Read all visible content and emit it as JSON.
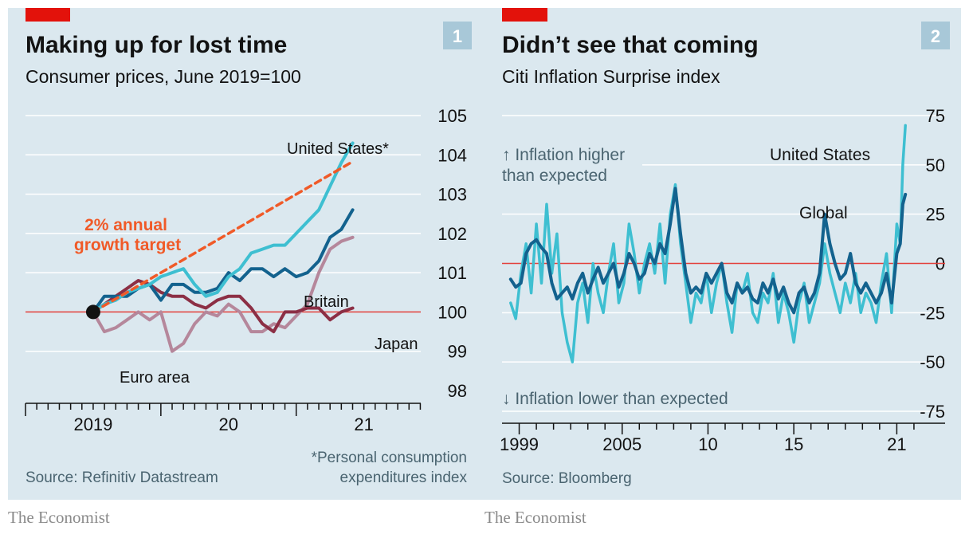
{
  "brand": "The Economist",
  "colors": {
    "panel_bg": "#dbe8ef",
    "grid": "#ffffff",
    "zero_line": "#e3413c",
    "accent_tag": "#e3120b",
    "badge": "#a8c8d8",
    "text_dark": "#121212",
    "text_muted": "#4a6470",
    "usa_light": "#3ebfd1",
    "britain_blue": "#13628e",
    "japan_maroon": "#8c2f45",
    "euro_mauve": "#b5879b",
    "target_orange": "#f05a28"
  },
  "charts": [
    {
      "number": "1",
      "title": "Making up for lost time",
      "subtitle": "Consumer prices, June 2019=100",
      "source": "Source: Refinitiv Datastream",
      "footnote_line1": "*Personal consumption",
      "footnote_line2": "expenditures index"
    },
    {
      "number": "2",
      "title": "Didn’t see that coming",
      "subtitle": "Citi Inflation Surprise index",
      "source": "Source: Bloomberg",
      "note_higher_line1": "↑ Inflation higher",
      "note_higher_line2": "than expected",
      "note_lower": "↓ Inflation lower than expected"
    }
  ],
  "chart_data": [
    {
      "type": "line",
      "title": "Making up for lost time",
      "subtitle": "Consumer prices, June 2019=100",
      "ylim": [
        98,
        105
      ],
      "y_ticks": [
        98,
        99,
        100,
        101,
        102,
        103,
        104,
        105
      ],
      "x_tick_labels": [
        {
          "label": "2019",
          "x": 2019.5
        },
        {
          "label": "20",
          "x": 2020.5
        },
        {
          "label": "21",
          "x": 2021.5
        }
      ],
      "x_range": [
        2019.0,
        2021.92
      ],
      "series": [
        {
          "name": "United States*",
          "label": "United States*",
          "color": "#3ebfd1",
          "x": [
            2019.5,
            2019.583,
            2019.667,
            2019.75,
            2019.833,
            2019.917,
            2020.0,
            2020.083,
            2020.167,
            2020.25,
            2020.333,
            2020.417,
            2020.5,
            2020.583,
            2020.667,
            2020.75,
            2020.833,
            2020.917,
            2021.0,
            2021.083,
            2021.167,
            2021.25,
            2021.333,
            2021.417
          ],
          "values": [
            100,
            100.2,
            100.3,
            100.5,
            100.6,
            100.7,
            100.9,
            101.0,
            101.1,
            100.7,
            100.4,
            100.5,
            100.9,
            101.1,
            101.5,
            101.6,
            101.7,
            101.7,
            102.0,
            102.3,
            102.6,
            103.2,
            103.8,
            104.3
          ]
        },
        {
          "name": "Britain",
          "label": "Britain",
          "color": "#13628e",
          "x": [
            2019.5,
            2019.583,
            2019.667,
            2019.75,
            2019.833,
            2019.917,
            2020.0,
            2020.083,
            2020.167,
            2020.25,
            2020.333,
            2020.417,
            2020.5,
            2020.583,
            2020.667,
            2020.75,
            2020.833,
            2020.917,
            2021.0,
            2021.083,
            2021.167,
            2021.25,
            2021.333,
            2021.417
          ],
          "values": [
            100,
            100.4,
            100.4,
            100.4,
            100.6,
            100.7,
            100.3,
            100.7,
            100.7,
            100.5,
            100.5,
            100.6,
            101.0,
            100.8,
            101.1,
            101.1,
            100.9,
            101.1,
            100.9,
            101.0,
            101.3,
            101.9,
            102.1,
            102.6
          ]
        },
        {
          "name": "Japan",
          "label": "Japan",
          "color": "#8c2f45",
          "x": [
            2019.5,
            2019.583,
            2019.667,
            2019.75,
            2019.833,
            2019.917,
            2020.0,
            2020.083,
            2020.167,
            2020.25,
            2020.333,
            2020.417,
            2020.5,
            2020.583,
            2020.667,
            2020.75,
            2020.833,
            2020.917,
            2021.0,
            2021.083,
            2021.167,
            2021.25,
            2021.333,
            2021.417
          ],
          "values": [
            100,
            100.2,
            100.4,
            100.6,
            100.8,
            100.7,
            100.5,
            100.4,
            100.4,
            100.2,
            100.1,
            100.3,
            100.4,
            100.4,
            100.1,
            99.7,
            99.5,
            100.0,
            100.0,
            100.1,
            100.1,
            99.8,
            100.0,
            100.1
          ]
        },
        {
          "name": "Euro area",
          "label": "Euro area",
          "color": "#b5879b",
          "x": [
            2019.5,
            2019.583,
            2019.667,
            2019.75,
            2019.833,
            2019.917,
            2020.0,
            2020.083,
            2020.167,
            2020.25,
            2020.333,
            2020.417,
            2020.5,
            2020.583,
            2020.667,
            2020.75,
            2020.833,
            2020.917,
            2021.0,
            2021.083,
            2021.167,
            2021.25,
            2021.333,
            2021.417
          ],
          "values": [
            100,
            99.5,
            99.6,
            99.8,
            100.0,
            99.8,
            100.0,
            99.0,
            99.2,
            99.7,
            100.0,
            99.9,
            100.2,
            100.0,
            99.5,
            99.5,
            99.7,
            99.6,
            99.9,
            100.2,
            101.0,
            101.6,
            101.8,
            101.9
          ]
        },
        {
          "name": "2% annual growth target",
          "label": "2% annual growth target",
          "label_line1": "2% annual",
          "label_line2": "growth target",
          "color": "#f05a28",
          "dashed": true,
          "x": [
            2019.5,
            2021.417
          ],
          "values": [
            100,
            103.83
          ]
        }
      ],
      "start_marker": {
        "x": 2019.5,
        "y": 100
      }
    },
    {
      "type": "line",
      "title": "Didn’t see that coming",
      "subtitle": "Citi Inflation Surprise index",
      "ylim": [
        -75,
        75
      ],
      "y_ticks": [
        -75,
        -50,
        -25,
        0,
        25,
        50,
        75
      ],
      "x_tick_labels": [
        {
          "label": "1999",
          "x": 1999.0
        },
        {
          "label": "2005",
          "x": 2005.0
        },
        {
          "label": "10",
          "x": 2010.0
        },
        {
          "label": "15",
          "x": 2015.0
        },
        {
          "label": "21",
          "x": 2021.0
        }
      ],
      "x_range": [
        1998.0,
        2024.0
      ],
      "series": [
        {
          "name": "United States",
          "label": "United States",
          "color": "#3ebfd1",
          "x": [
            1998.5,
            1998.8,
            1999.1,
            1999.4,
            1999.7,
            2000.0,
            2000.3,
            2000.6,
            2000.9,
            2001.2,
            2001.5,
            2001.8,
            2002.1,
            2002.4,
            2002.7,
            2003.0,
            2003.3,
            2003.6,
            2003.9,
            2004.2,
            2004.5,
            2004.8,
            2005.1,
            2005.4,
            2005.7,
            2006.0,
            2006.3,
            2006.6,
            2006.9,
            2007.2,
            2007.5,
            2007.8,
            2008.1,
            2008.4,
            2008.7,
            2009.0,
            2009.3,
            2009.6,
            2009.9,
            2010.2,
            2010.5,
            2010.8,
            2011.1,
            2011.4,
            2011.7,
            2012.0,
            2012.3,
            2012.6,
            2012.9,
            2013.2,
            2013.5,
            2013.8,
            2014.1,
            2014.4,
            2014.7,
            2015.0,
            2015.3,
            2015.6,
            2015.9,
            2016.2,
            2016.5,
            2016.8,
            2017.1,
            2017.4,
            2017.7,
            2018.0,
            2018.3,
            2018.6,
            2018.9,
            2019.2,
            2019.5,
            2019.8,
            2020.1,
            2020.4,
            2020.7,
            2021.0,
            2021.2,
            2021.35,
            2021.5
          ],
          "values": [
            -20,
            -28,
            -5,
            10,
            -15,
            20,
            -10,
            30,
            -5,
            15,
            -25,
            -40,
            -50,
            -20,
            -10,
            -30,
            0,
            -15,
            -25,
            -5,
            10,
            -20,
            -10,
            20,
            5,
            -15,
            0,
            10,
            -5,
            20,
            -10,
            25,
            40,
            10,
            -10,
            -30,
            -15,
            -20,
            -5,
            -25,
            -10,
            0,
            -20,
            -35,
            -10,
            -15,
            -5,
            -25,
            -30,
            -15,
            -20,
            -5,
            -30,
            -15,
            -25,
            -40,
            -20,
            -10,
            -30,
            -20,
            -10,
            10,
            -5,
            -15,
            -25,
            -10,
            -20,
            -5,
            -25,
            -15,
            -20,
            -30,
            -10,
            5,
            -25,
            20,
            10,
            50,
            70
          ]
        },
        {
          "name": "Global",
          "label": "Global",
          "color": "#13628e",
          "x": [
            1998.5,
            1998.8,
            1999.1,
            1999.4,
            1999.7,
            2000.0,
            2000.3,
            2000.6,
            2000.9,
            2001.2,
            2001.5,
            2001.8,
            2002.1,
            2002.4,
            2002.7,
            2003.0,
            2003.3,
            2003.6,
            2003.9,
            2004.2,
            2004.5,
            2004.8,
            2005.1,
            2005.4,
            2005.7,
            2006.0,
            2006.3,
            2006.6,
            2006.9,
            2007.2,
            2007.5,
            2007.8,
            2008.1,
            2008.4,
            2008.7,
            2009.0,
            2009.3,
            2009.6,
            2009.9,
            2010.2,
            2010.5,
            2010.8,
            2011.1,
            2011.4,
            2011.7,
            2012.0,
            2012.3,
            2012.6,
            2012.9,
            2013.2,
            2013.5,
            2013.8,
            2014.1,
            2014.4,
            2014.7,
            2015.0,
            2015.3,
            2015.6,
            2015.9,
            2016.2,
            2016.5,
            2016.8,
            2017.1,
            2017.4,
            2017.7,
            2018.0,
            2018.3,
            2018.6,
            2018.9,
            2019.2,
            2019.5,
            2019.8,
            2020.1,
            2020.4,
            2020.7,
            2021.0,
            2021.2,
            2021.35,
            2021.5
          ],
          "values": [
            -8,
            -12,
            -10,
            5,
            10,
            12,
            8,
            5,
            -10,
            -18,
            -15,
            -12,
            -18,
            -10,
            -5,
            -15,
            -8,
            -2,
            -10,
            -5,
            0,
            -12,
            -5,
            5,
            0,
            -8,
            -5,
            5,
            0,
            10,
            5,
            20,
            38,
            15,
            -5,
            -15,
            -12,
            -15,
            -5,
            -10,
            -5,
            0,
            -15,
            -20,
            -10,
            -15,
            -12,
            -18,
            -20,
            -10,
            -15,
            -8,
            -18,
            -12,
            -20,
            -25,
            -15,
            -12,
            -20,
            -15,
            -5,
            25,
            10,
            0,
            -8,
            -5,
            5,
            -10,
            -15,
            -10,
            -15,
            -20,
            -15,
            -5,
            -20,
            5,
            10,
            30,
            35
          ]
        }
      ]
    }
  ]
}
